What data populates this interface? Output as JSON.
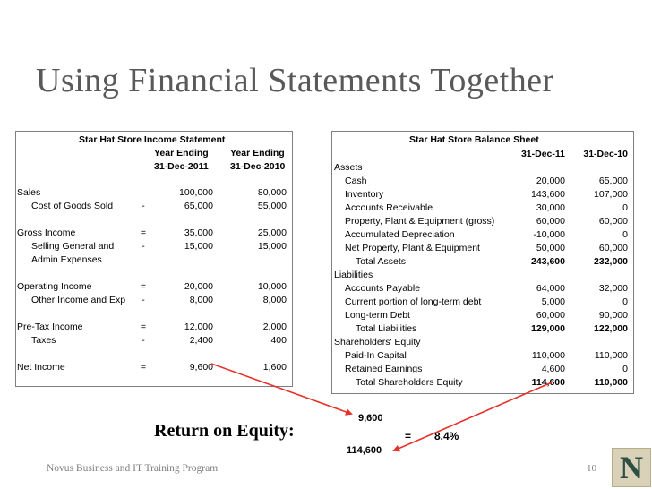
{
  "title": "Using Financial Statements Together",
  "income": {
    "title": "Star Hat Store Income Statement",
    "col1_head1": "Year Ending",
    "col1_head2": "31-Dec-2011",
    "col2_head1": "Year Ending",
    "col2_head2": "31-Dec-2010",
    "rows": [
      {
        "label": "Sales",
        "sign": "",
        "v1": "100,000",
        "v2": "80,000"
      },
      {
        "label": "Cost of Goods Sold",
        "sign": "-",
        "v1": "65,000",
        "v2": "55,000"
      },
      {
        "label": "Gross Income",
        "sign": "=",
        "v1": "35,000",
        "v2": "25,000"
      },
      {
        "label": "Selling General and",
        "sign": "-",
        "v1": "15,000",
        "v2": "15,000"
      },
      {
        "label": "Admin Expenses",
        "sign": "",
        "v1": "",
        "v2": ""
      },
      {
        "label": "Operating Income",
        "sign": "=",
        "v1": "20,000",
        "v2": "10,000"
      },
      {
        "label": "Other Income and Exp",
        "sign": "-",
        "v1": "8,000",
        "v2": "8,000"
      },
      {
        "label": "Pre-Tax Income",
        "sign": "=",
        "v1": "12,000",
        "v2": "2,000"
      },
      {
        "label": "Taxes",
        "sign": "-",
        "v1": "2,400",
        "v2": "400"
      },
      {
        "label": "Net Income",
        "sign": "=",
        "v1": "9,600",
        "v2": "1,600"
      }
    ]
  },
  "balance": {
    "title": "Star Hat Store  Balance Sheet",
    "col1_head": "31-Dec-11",
    "col2_head": "31-Dec-10",
    "rows": [
      {
        "label": "Assets",
        "v1": "",
        "v2": ""
      },
      {
        "label": "Cash",
        "v1": "20,000",
        "v2": "65,000"
      },
      {
        "label": "Inventory",
        "v1": "143,600",
        "v2": "107,000"
      },
      {
        "label": "Accounts Receivable",
        "v1": "30,000",
        "v2": "0"
      },
      {
        "label": "Property, Plant & Equipment (gross)",
        "v1": "60,000",
        "v2": "60,000"
      },
      {
        "label": "Accumulated Depreciation",
        "v1": "-10,000",
        "v2": "0"
      },
      {
        "label": "Net Property, Plant & Equipment",
        "v1": "50,000",
        "v2": "60,000"
      },
      {
        "label": "Total Assets",
        "v1": "243,600",
        "v2": "232,000"
      },
      {
        "label": "Liabilities",
        "v1": "",
        "v2": ""
      },
      {
        "label": "Accounts Payable",
        "v1": "64,000",
        "v2": "32,000"
      },
      {
        "label": "Current portion of long-term debt",
        "v1": "5,000",
        "v2": "0"
      },
      {
        "label": "Long-term Debt",
        "v1": "60,000",
        "v2": "90,000"
      },
      {
        "label": "Total Liabilities",
        "v1": "129,000",
        "v2": "122,000"
      },
      {
        "label": "Shareholders' Equity",
        "v1": "",
        "v2": ""
      },
      {
        "label": "Paid-In Capital",
        "v1": "110,000",
        "v2": "110,000"
      },
      {
        "label": "Retained Earnings",
        "v1": "4,600",
        "v2": "0"
      },
      {
        "label": "Total Shareholders Equity",
        "v1": "114,600",
        "v2": "110,000"
      }
    ]
  },
  "roe": {
    "label": "Return on Equity:",
    "numerator": "9,600",
    "denominator": "114,600",
    "equals": "=",
    "result": "8.4%"
  },
  "footer": "Novus Business and IT Training Program",
  "page_number": "10",
  "arrow_color": "#e8302a",
  "logo_letter": "N"
}
